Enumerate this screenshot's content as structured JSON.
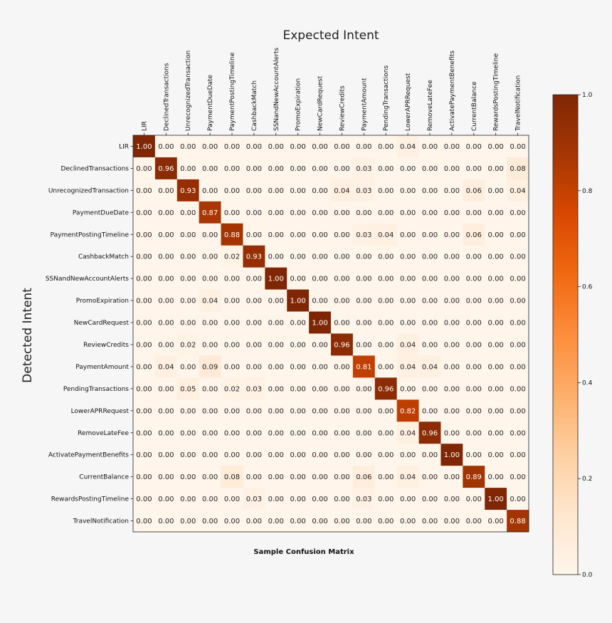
{
  "chart_data": {
    "type": "heatmap",
    "title": "Sample Confusion Matrix",
    "xlabel": "Expected Intent",
    "ylabel": "Detected Intent",
    "x_categories": [
      "LIR",
      "DeclinedTransactions",
      "UnrecognizedTransaction",
      "PaymentDueDate",
      "PaymentPostingTimeline",
      "CashbackMatch",
      "SSNandNewAccountAlerts",
      "PromoExpiration",
      "NewCardRequest",
      "ReviewCredits",
      "PaymentAmount",
      "PendingTransactions",
      "LowerAPRRequest",
      "RemoveLateFee",
      "ActivatePaymentBenefits",
      "CurrentBalance",
      "RewardsPostingTimeline",
      "TravelNotification"
    ],
    "y_categories": [
      "LIR",
      "DeclinedTransactions",
      "UnrecognizedTransaction",
      "PaymentDueDate",
      "PaymentPostingTimeline",
      "CashbackMatch",
      "SSNandNewAccountAlerts",
      "PromoExpiration",
      "NewCardRequest",
      "ReviewCredits",
      "PaymentAmount",
      "PendingTransactions",
      "LowerAPRRequest",
      "RemoveLateFee",
      "ActivatePaymentBenefits",
      "CurrentBalance",
      "RewardsPostingTimeline",
      "TravelNotification"
    ],
    "values": [
      [
        1.0,
        0.0,
        0.0,
        0.0,
        0.0,
        0.0,
        0.0,
        0.0,
        0.0,
        0.0,
        0.0,
        0.0,
        0.04,
        0.0,
        0.0,
        0.0,
        0.0,
        0.0
      ],
      [
        0.0,
        0.96,
        0.0,
        0.0,
        0.0,
        0.0,
        0.0,
        0.0,
        0.0,
        0.0,
        0.03,
        0.0,
        0.0,
        0.0,
        0.0,
        0.0,
        0.0,
        0.08
      ],
      [
        0.0,
        0.0,
        0.93,
        0.0,
        0.0,
        0.0,
        0.0,
        0.0,
        0.0,
        0.04,
        0.03,
        0.0,
        0.0,
        0.0,
        0.0,
        0.06,
        0.0,
        0.04
      ],
      [
        0.0,
        0.0,
        0.0,
        0.87,
        0.0,
        0.0,
        0.0,
        0.0,
        0.0,
        0.0,
        0.0,
        0.0,
        0.0,
        0.0,
        0.0,
        0.0,
        0.0,
        0.0
      ],
      [
        0.0,
        0.0,
        0.0,
        0.0,
        0.88,
        0.0,
        0.0,
        0.0,
        0.0,
        0.0,
        0.03,
        0.04,
        0.0,
        0.0,
        0.0,
        0.06,
        0.0,
        0.0
      ],
      [
        0.0,
        0.0,
        0.0,
        0.0,
        0.02,
        0.93,
        0.0,
        0.0,
        0.0,
        0.0,
        0.0,
        0.0,
        0.0,
        0.0,
        0.0,
        0.0,
        0.0,
        0.0
      ],
      [
        0.0,
        0.0,
        0.0,
        0.0,
        0.0,
        0.0,
        1.0,
        0.0,
        0.0,
        0.0,
        0.0,
        0.0,
        0.0,
        0.0,
        0.0,
        0.0,
        0.0,
        0.0
      ],
      [
        0.0,
        0.0,
        0.0,
        0.04,
        0.0,
        0.0,
        0.0,
        1.0,
        0.0,
        0.0,
        0.0,
        0.0,
        0.0,
        0.0,
        0.0,
        0.0,
        0.0,
        0.0
      ],
      [
        0.0,
        0.0,
        0.0,
        0.0,
        0.0,
        0.0,
        0.0,
        0.0,
        1.0,
        0.0,
        0.0,
        0.0,
        0.0,
        0.0,
        0.0,
        0.0,
        0.0,
        0.0
      ],
      [
        0.0,
        0.0,
        0.02,
        0.0,
        0.0,
        0.0,
        0.0,
        0.0,
        0.0,
        0.96,
        0.0,
        0.0,
        0.04,
        0.0,
        0.0,
        0.0,
        0.0,
        0.0
      ],
      [
        0.0,
        0.04,
        0.0,
        0.09,
        0.0,
        0.0,
        0.0,
        0.0,
        0.0,
        0.0,
        0.81,
        0.0,
        0.04,
        0.04,
        0.0,
        0.0,
        0.0,
        0.0
      ],
      [
        0.0,
        0.0,
        0.05,
        0.0,
        0.02,
        0.03,
        0.0,
        0.0,
        0.0,
        0.0,
        0.0,
        0.96,
        0.0,
        0.0,
        0.0,
        0.0,
        0.0,
        0.0
      ],
      [
        0.0,
        0.0,
        0.0,
        0.0,
        0.0,
        0.0,
        0.0,
        0.0,
        0.0,
        0.0,
        0.0,
        0.0,
        0.82,
        0.0,
        0.0,
        0.0,
        0.0,
        0.0
      ],
      [
        0.0,
        0.0,
        0.0,
        0.0,
        0.0,
        0.0,
        0.0,
        0.0,
        0.0,
        0.0,
        0.0,
        0.0,
        0.04,
        0.96,
        0.0,
        0.0,
        0.0,
        0.0
      ],
      [
        0.0,
        0.0,
        0.0,
        0.0,
        0.0,
        0.0,
        0.0,
        0.0,
        0.0,
        0.0,
        0.0,
        0.0,
        0.0,
        0.0,
        1.0,
        0.0,
        0.0,
        0.0
      ],
      [
        0.0,
        0.0,
        0.0,
        0.0,
        0.08,
        0.0,
        0.0,
        0.0,
        0.0,
        0.0,
        0.06,
        0.0,
        0.04,
        0.0,
        0.0,
        0.89,
        0.0,
        0.0
      ],
      [
        0.0,
        0.0,
        0.0,
        0.0,
        0.0,
        0.03,
        0.0,
        0.0,
        0.0,
        0.0,
        0.03,
        0.0,
        0.0,
        0.0,
        0.0,
        0.0,
        1.0,
        0.0
      ],
      [
        0.0,
        0.0,
        0.0,
        0.0,
        0.0,
        0.0,
        0.0,
        0.0,
        0.0,
        0.0,
        0.0,
        0.0,
        0.0,
        0.0,
        0.0,
        0.0,
        0.0,
        0.88
      ]
    ],
    "colormap": "Oranges",
    "colorbar": {
      "range": [
        0.0,
        1.0
      ],
      "ticks": [
        0.0,
        0.2,
        0.4,
        0.6,
        0.8,
        1.0
      ],
      "tick_labels": [
        "0.0",
        "0.2",
        "0.4",
        "0.6",
        "0.8",
        "1.0"
      ]
    },
    "grid": false,
    "value_format": "0.00"
  }
}
